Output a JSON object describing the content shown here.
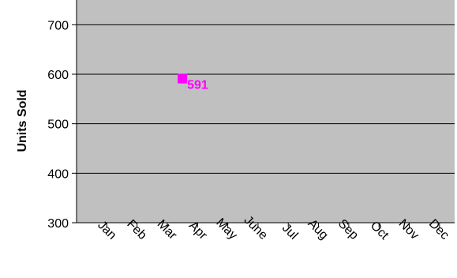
{
  "chart_data": {
    "type": "scatter",
    "title": "",
    "xlabel": "",
    "ylabel": "Units Sold",
    "categories": [
      "Jan",
      "Feb",
      "Mar",
      "Apr",
      "May",
      "June",
      "Jul",
      "Aug",
      "Sep",
      "Oct",
      "Nov",
      "Dec"
    ],
    "ylim": [
      300,
      750
    ],
    "yticks": [
      300,
      400,
      500,
      600,
      700
    ],
    "grid": true,
    "legend": "none",
    "series": [
      {
        "points": [
          {
            "x": 3.5,
            "y": 591,
            "label": "591"
          }
        ]
      }
    ],
    "colors": {
      "plot_background": "#c0c0c0",
      "gridline": "#000000",
      "marker": "#ff00ff",
      "data_label": "#ff00ff"
    },
    "marker": "square"
  }
}
